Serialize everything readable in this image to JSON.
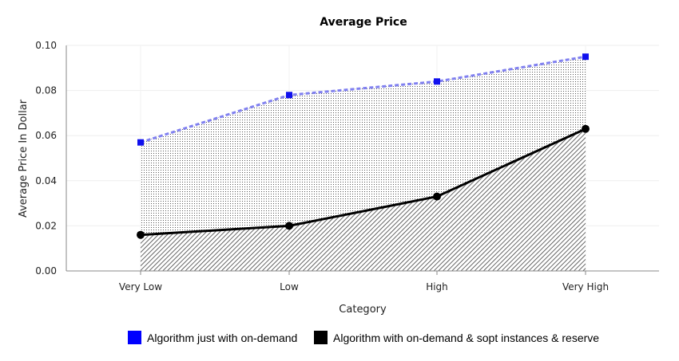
{
  "chart_data": {
    "type": "area",
    "title": "Average Price",
    "xlabel": "Category",
    "ylabel": "Average Price In Dollar",
    "categories": [
      "Very Low",
      "Low",
      "High",
      "Very High"
    ],
    "ylim": [
      0,
      0.1
    ],
    "yticks": [
      "0.00",
      "0.02",
      "0.04",
      "0.06",
      "0.08",
      "0.10"
    ],
    "grid": true,
    "legend_position": "bottom",
    "series": [
      {
        "name": "Algorithm just with on-demand",
        "values": [
          0.057,
          0.078,
          0.084,
          0.095
        ],
        "color": "#8080f0",
        "marker_color": "#1010ee",
        "marker": "square",
        "line_style": "dashed",
        "fill_pattern": "dots"
      },
      {
        "name": "Algorithm with on-demand & sopt instances & reserve",
        "values": [
          0.016,
          0.02,
          0.033,
          0.063
        ],
        "color": "#000000",
        "marker_color": "#000000",
        "marker": "circle",
        "line_style": "solid",
        "fill_pattern": "diagonal-hatch"
      }
    ]
  }
}
